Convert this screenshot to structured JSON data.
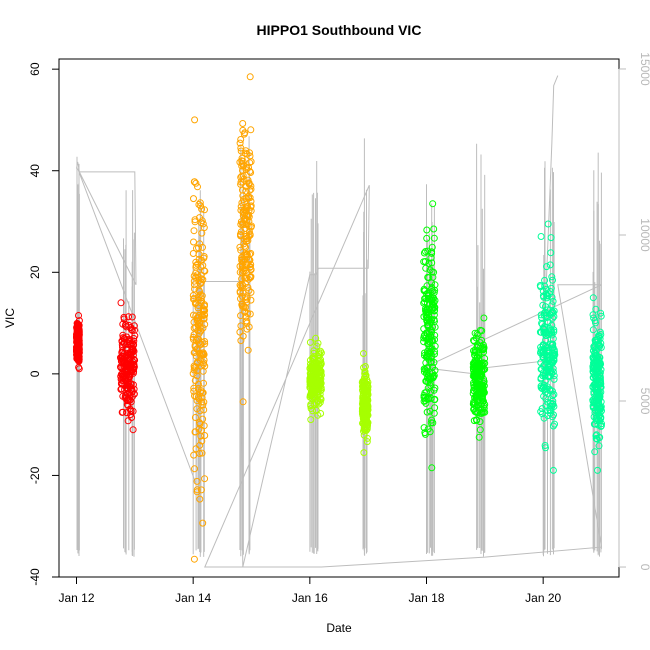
{
  "chart_data": {
    "type": "scatter",
    "title": "HIPPO1 Southbound VIC",
    "xlabel": "Date",
    "ylabel": "VIC",
    "x_ticks": [
      "Jan 12",
      "Jan 14",
      "Jan 16",
      "Jan 18",
      "Jan 20"
    ],
    "x_tick_values": [
      12,
      14,
      16,
      18,
      20
    ],
    "xlim": [
      11.7,
      21.3
    ],
    "ylim": [
      -40,
      62
    ],
    "y_ticks": [
      -40,
      -20,
      0,
      20,
      40,
      60
    ],
    "y2lim": [
      -300,
      15300
    ],
    "y2_ticks": [
      0,
      5000,
      10000,
      15000
    ],
    "y2_color": "#bdbdbd",
    "series": [
      {
        "color": "#ff0000",
        "x_range": [
          12.0,
          12.05
        ],
        "y_range": [
          1,
          11.5
        ]
      },
      {
        "color": "#ff0000",
        "x_range": [
          12.75,
          13.0
        ],
        "y_range": [
          -11,
          14
        ]
      },
      {
        "color": "#ffa500",
        "x_range": [
          14.0,
          14.2
        ],
        "y_range": [
          -36.5,
          50
        ]
      },
      {
        "color": "#ffa500",
        "x_range": [
          14.8,
          15.0
        ],
        "y_range": [
          -5.5,
          58.5
        ]
      },
      {
        "color": "#a6ff00",
        "x_range": [
          16.0,
          16.2
        ],
        "y_range": [
          -9,
          7
        ]
      },
      {
        "color": "#a6ff00",
        "x_range": [
          16.9,
          17.0
        ],
        "y_range": [
          -15.5,
          4
        ]
      },
      {
        "color": "#00ff00",
        "x_range": [
          17.95,
          18.15
        ],
        "y_range": [
          -18.5,
          33.5
        ]
      },
      {
        "color": "#00ff00",
        "x_range": [
          18.8,
          19.0
        ],
        "y_range": [
          -12.5,
          11
        ]
      },
      {
        "color": "#00ff99",
        "x_range": [
          19.95,
          20.2
        ],
        "y_range": [
          -19,
          29.5
        ]
      },
      {
        "color": "#00ff99",
        "x_range": [
          20.85,
          21.0
        ],
        "y_range": [
          -19,
          15
        ]
      }
    ],
    "altitude_line": {
      "color": "#bdbdbd",
      "axis": "right",
      "points": [
        [
          12.0,
          12000
        ],
        [
          12.02,
          12200
        ],
        [
          12.05,
          11900
        ],
        [
          13.0,
          11900
        ],
        [
          13.02,
          8500
        ],
        [
          12.02,
          12000
        ],
        [
          14.05,
          2500
        ],
        [
          14.08,
          8700
        ],
        [
          14.15,
          8600
        ],
        [
          14.8,
          8600
        ],
        [
          14.85,
          0
        ],
        [
          16.0,
          8800
        ],
        [
          16.1,
          8800
        ],
        [
          16.15,
          9000
        ],
        [
          17.0,
          9000
        ],
        [
          17.02,
          11500
        ],
        [
          14.2,
          0
        ],
        [
          16.05,
          0
        ],
        [
          16.2,
          0
        ],
        [
          19.0,
          300
        ],
        [
          21.0,
          600
        ],
        [
          20.25,
          8500
        ],
        [
          21.0,
          8500
        ],
        [
          17.95,
          6000
        ],
        [
          18.9,
          5800
        ],
        [
          19.0,
          6000
        ],
        [
          20.0,
          6200
        ],
        [
          20.15,
          12800
        ],
        [
          20.18,
          14500
        ],
        [
          20.25,
          14800
        ]
      ]
    }
  }
}
